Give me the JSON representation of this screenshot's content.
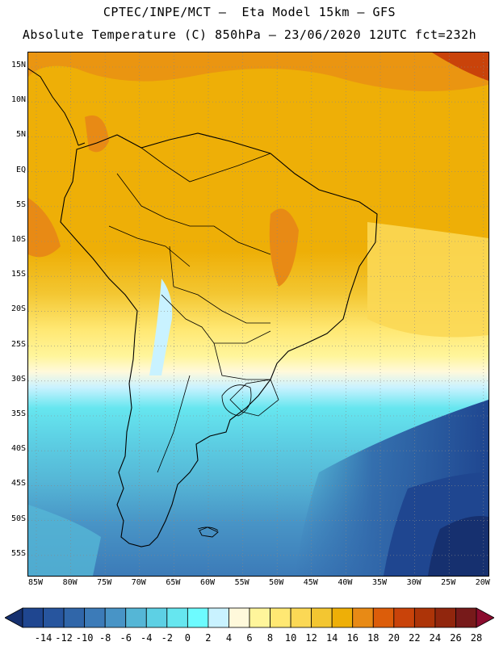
{
  "header": {
    "line1": "CPTEC/INPE/MCT –  Eta Model 15km – GFS",
    "line2": "Absolute Temperature (C) 850hPa – 23/06/2020 12UTC fct=232h"
  },
  "map": {
    "lat_labels": [
      "15N",
      "10N",
      "5N",
      "EQ",
      "5S",
      "10S",
      "15S",
      "20S",
      "25S",
      "30S",
      "35S",
      "40S",
      "45S",
      "50S",
      "55S"
    ],
    "lon_labels": [
      "85W",
      "80W",
      "75W",
      "70W",
      "65W",
      "60W",
      "55W",
      "50W",
      "45W",
      "40W",
      "35W",
      "30W",
      "25W",
      "20W"
    ]
  },
  "colorbar": {
    "labels": [
      "-14",
      "-12",
      "-10",
      "-8",
      "-6",
      "-4",
      "-2",
      "0",
      "2",
      "4",
      "6",
      "8",
      "10",
      "12",
      "14",
      "16",
      "18",
      "20",
      "22",
      "24",
      "26",
      "28"
    ],
    "colors": [
      "#16306f",
      "#1f4690",
      "#27559e",
      "#3066a9",
      "#3c7bb8",
      "#4894c6",
      "#55b6d6",
      "#5dd0e4",
      "#66e6ef",
      "#6dfbff",
      "#c9f2ff",
      "#fff9db",
      "#fff59b",
      "#ffe873",
      "#fbd855",
      "#f3c631",
      "#eeaf07",
      "#e88a15",
      "#dc5d0a",
      "#c9430a",
      "#ad3408",
      "#91260d",
      "#771a1a",
      "#8b0c2e"
    ]
  }
}
